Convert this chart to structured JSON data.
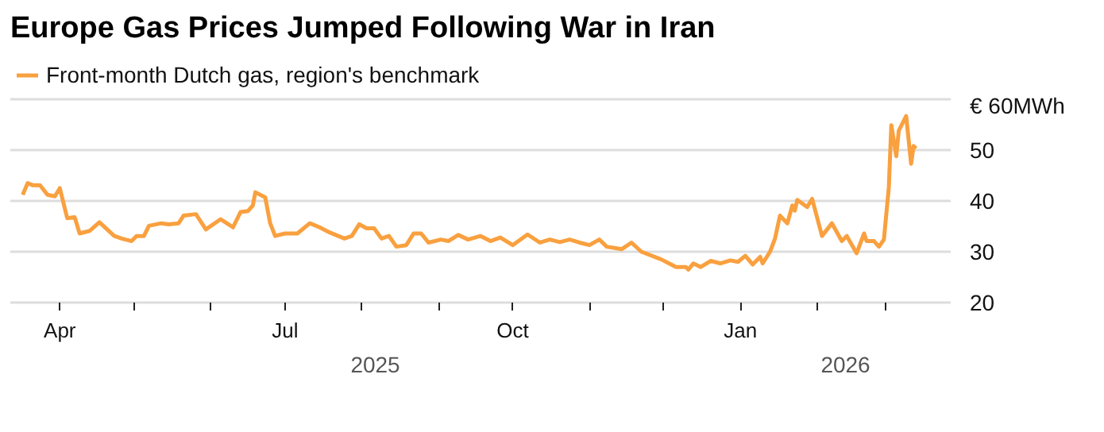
{
  "chart_data": {
    "type": "line",
    "title": "Europe Gas Prices Jumped Following War in Iran",
    "x": [
      "2025-03-17",
      "2025-03-19",
      "2025-03-21",
      "2025-03-24",
      "2025-03-27",
      "2025-03-30",
      "2025-04-01",
      "2025-04-04",
      "2025-04-07",
      "2025-04-09",
      "2025-04-13",
      "2025-04-17",
      "2025-04-23",
      "2025-04-26",
      "2025-04-30",
      "2025-05-02",
      "2025-05-05",
      "2025-05-07",
      "2025-05-12",
      "2025-05-15",
      "2025-05-19",
      "2025-05-21",
      "2025-05-26",
      "2025-05-30",
      "2025-06-05",
      "2025-06-10",
      "2025-06-13",
      "2025-06-16",
      "2025-06-18",
      "2025-06-19",
      "2025-06-23",
      "2025-06-25",
      "2025-06-27",
      "2025-07-01",
      "2025-07-06",
      "2025-07-11",
      "2025-07-15",
      "2025-07-19",
      "2025-07-25",
      "2025-07-28",
      "2025-07-31",
      "2025-08-03",
      "2025-08-06",
      "2025-08-09",
      "2025-08-12",
      "2025-08-15",
      "2025-08-19",
      "2025-08-22",
      "2025-08-25",
      "2025-08-28",
      "2025-09-02",
      "2025-09-05",
      "2025-09-09",
      "2025-09-13",
      "2025-09-18",
      "2025-09-22",
      "2025-09-26",
      "2025-10-01",
      "2025-10-07",
      "2025-10-12",
      "2025-10-16",
      "2025-10-20",
      "2025-10-24",
      "2025-10-28",
      "2025-11-01",
      "2025-11-05",
      "2025-11-08",
      "2025-11-14",
      "2025-11-18",
      "2025-11-22",
      "2025-11-30",
      "2025-12-04",
      "2025-12-06",
      "2025-12-10",
      "2025-12-11",
      "2025-12-13",
      "2025-12-16",
      "2025-12-20",
      "2025-12-24",
      "2025-12-28",
      "2025-12-31",
      "2026-01-03",
      "2026-01-06",
      "2026-01-09",
      "2026-01-10",
      "2026-01-13",
      "2026-01-15",
      "2026-01-17",
      "2026-01-20",
      "2026-01-22",
      "2026-01-23",
      "2026-01-24",
      "2026-01-28",
      "2026-01-30",
      "2026-02-03",
      "2026-02-07",
      "2026-02-11",
      "2026-02-13",
      "2026-02-17",
      "2026-02-20",
      "2026-02-21",
      "2026-02-24",
      "2026-02-26",
      "2026-02-28",
      "2026-03-02",
      "2026-03-03",
      "2026-03-05",
      "2026-03-06",
      "2026-03-09",
      "2026-03-11",
      "2026-03-12",
      "2026-03-13"
    ],
    "series": [
      {
        "name": "Front-month Dutch gas, region's benchmark",
        "color": "#f9a03f",
        "values": [
          41.2,
          43.5,
          43.1,
          43.1,
          41.2,
          40.9,
          42.5,
          36.6,
          36.8,
          33.6,
          34.1,
          35.8,
          33.1,
          32.6,
          32.1,
          33.1,
          33.1,
          35.1,
          35.6,
          35.4,
          35.6,
          37.1,
          37.4,
          34.4,
          36.4,
          34.8,
          37.8,
          38.0,
          39.1,
          41.7,
          40.7,
          35.6,
          33.1,
          33.6,
          33.6,
          35.6,
          34.8,
          33.8,
          32.6,
          33.1,
          35.4,
          34.6,
          34.6,
          32.6,
          33.1,
          31.0,
          31.3,
          33.6,
          33.6,
          31.8,
          32.4,
          32.1,
          33.3,
          32.4,
          33.1,
          32.1,
          32.8,
          31.3,
          33.4,
          31.8,
          32.4,
          31.9,
          32.4,
          31.8,
          31.3,
          32.4,
          31.0,
          30.5,
          31.8,
          30.0,
          28.5,
          27.5,
          27.0,
          27.0,
          26.5,
          27.7,
          27.0,
          28.2,
          27.7,
          28.3,
          28.0,
          29.2,
          27.5,
          29.0,
          27.7,
          30.0,
          32.6,
          37.1,
          35.6,
          39.1,
          38.1,
          40.2,
          38.8,
          40.4,
          33.1,
          35.6,
          32.1,
          33.1,
          29.7,
          33.6,
          32.1,
          32.1,
          31.0,
          32.4,
          42.7,
          54.9,
          48.8,
          53.8,
          56.7,
          47.3,
          50.8,
          50.3
        ]
      }
    ],
    "xlim": [
      "2025-03-12",
      "2026-03-27"
    ],
    "xticks": [
      {
        "value": "2025-04-01",
        "label": "Apr"
      },
      {
        "value": "2025-05-01",
        "label": null
      },
      {
        "value": "2025-06-01",
        "label": null
      },
      {
        "value": "2025-07-01",
        "label": "Jul"
      },
      {
        "value": "2025-08-01",
        "label": null
      },
      {
        "value": "2025-09-01",
        "label": null
      },
      {
        "value": "2025-10-01",
        "label": "Oct"
      },
      {
        "value": "2025-11-01",
        "label": null
      },
      {
        "value": "2025-12-01",
        "label": null
      },
      {
        "value": "2026-01-01",
        "label": "Jan"
      },
      {
        "value": "2026-02-01",
        "label": null
      },
      {
        "value": "2026-03-01",
        "label": null
      }
    ],
    "ylim": [
      20,
      60
    ],
    "yticks": [
      20,
      30,
      40,
      50,
      {
        "value": 60,
        "label": "€ 60MWh"
      }
    ],
    "annotations": [
      "2025",
      "2026"
    ],
    "grid": "y",
    "legend": "top left"
  }
}
